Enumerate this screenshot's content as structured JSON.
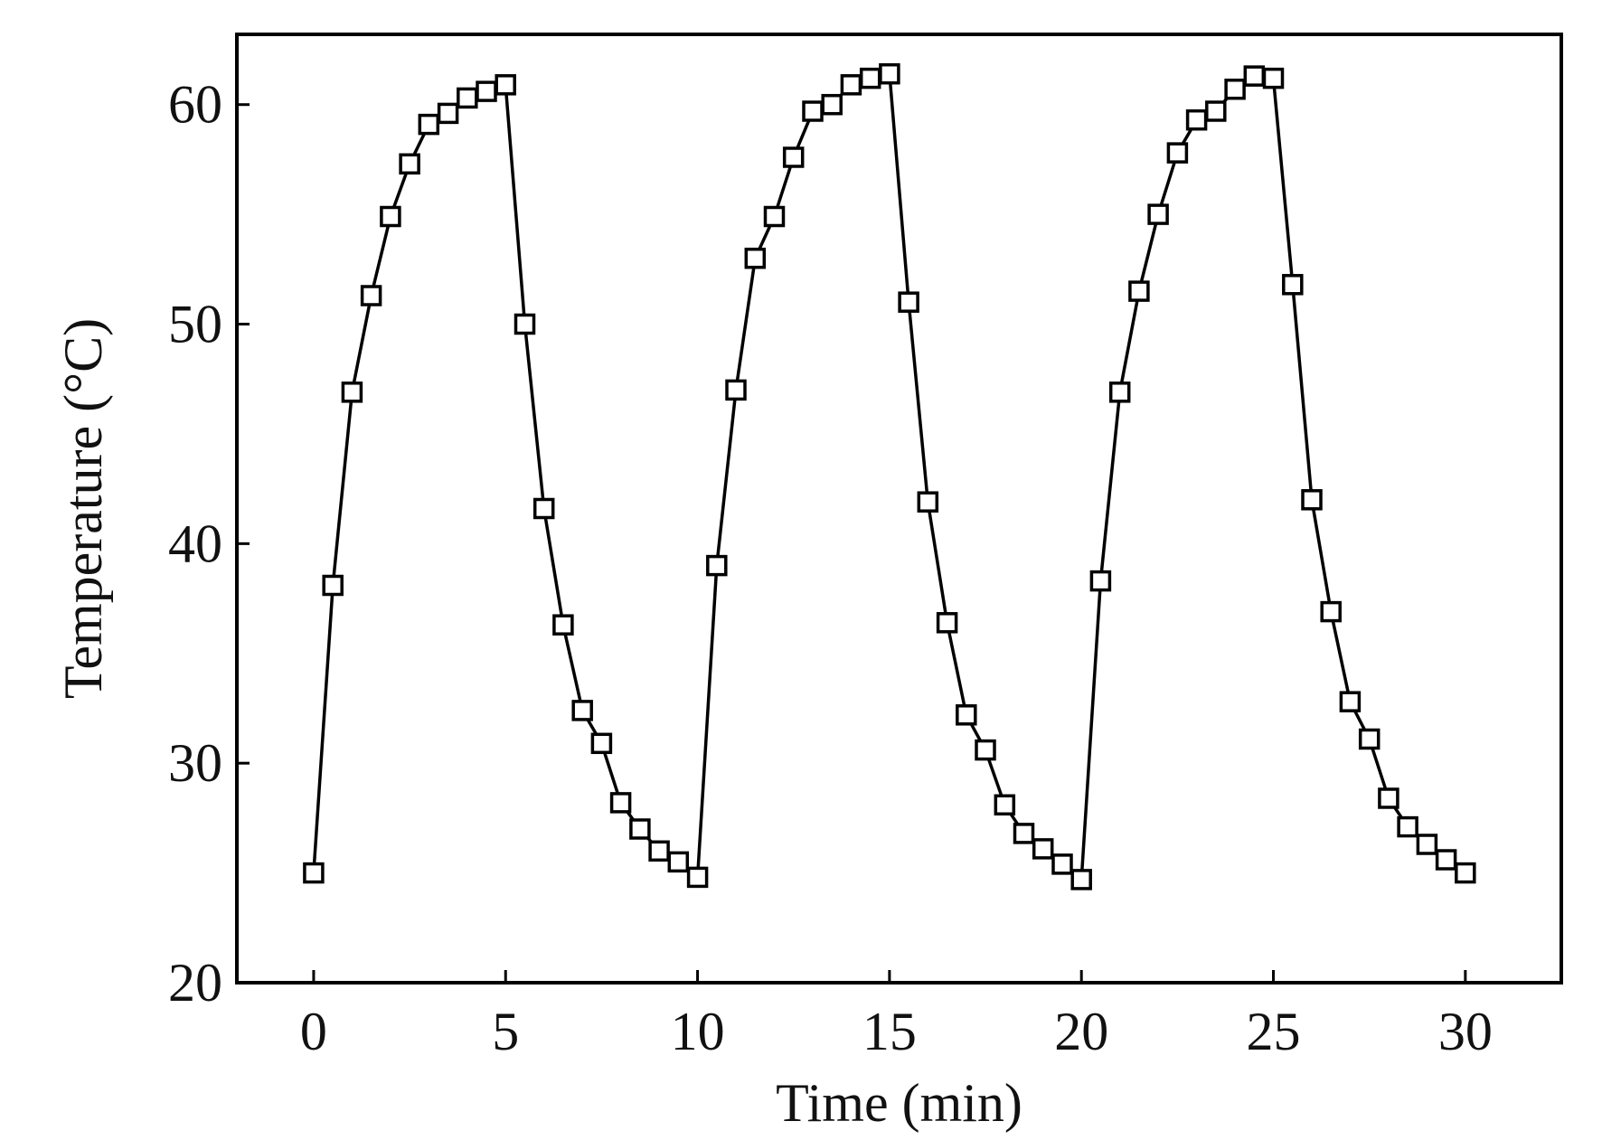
{
  "chart_data": {
    "type": "line",
    "title": "",
    "xlabel": "Time (min)",
    "ylabel": "Temperature (°C)",
    "xlim": [
      -2,
      32.5
    ],
    "ylim": [
      20,
      63.2
    ],
    "xticks": [
      0,
      5,
      10,
      15,
      20,
      25,
      30
    ],
    "yticks": [
      20,
      30,
      40,
      50,
      60
    ],
    "grid": false,
    "legend": "none",
    "marker": "open-square",
    "line_color": "#000000",
    "series": [
      {
        "x": [
          0,
          0.5,
          1,
          1.5,
          2,
          2.5,
          3,
          3.5,
          4,
          4.5,
          5,
          5.5,
          6,
          6.5,
          7,
          7.5,
          8,
          8.5,
          9,
          9.5,
          10,
          10.5,
          11,
          11.5,
          12,
          12.5,
          13,
          13.5,
          14,
          14.5,
          15,
          15.5,
          16,
          16.5,
          17,
          17.5,
          18,
          18.5,
          19,
          19.5,
          20,
          20.5,
          21,
          21.5,
          22,
          22.5,
          23,
          23.5,
          24,
          24.5,
          25,
          25.5,
          26,
          26.5,
          27,
          27.5,
          28,
          28.5,
          29,
          29.5,
          30
        ],
        "y": [
          25.0,
          38.1,
          46.9,
          51.3,
          54.9,
          57.3,
          59.1,
          59.6,
          60.3,
          60.6,
          60.9,
          50.0,
          41.6,
          36.3,
          32.4,
          30.9,
          28.2,
          27.0,
          26.0,
          25.5,
          24.8,
          39.0,
          47.0,
          53.0,
          54.9,
          57.6,
          59.7,
          60.0,
          60.9,
          61.2,
          61.4,
          51.0,
          41.9,
          36.4,
          32.2,
          30.6,
          28.1,
          26.8,
          26.1,
          25.4,
          24.7,
          38.3,
          46.9,
          51.5,
          55.0,
          57.8,
          59.3,
          59.7,
          60.7,
          61.3,
          61.2,
          51.8,
          42.0,
          36.9,
          32.8,
          31.1,
          28.4,
          27.1,
          26.3,
          25.6,
          25.0
        ]
      }
    ]
  }
}
